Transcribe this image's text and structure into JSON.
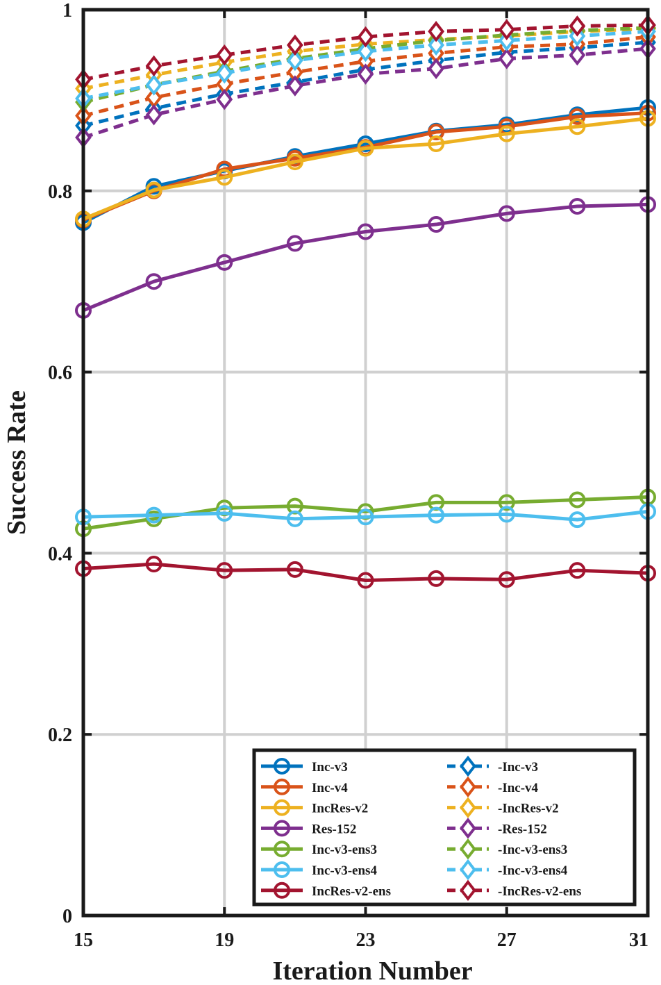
{
  "chart_data": {
    "type": "line",
    "title": "",
    "xlabel": "Iteration Number",
    "ylabel": "Success Rate",
    "xlim": [
      15,
      31
    ],
    "ylim": [
      0,
      1
    ],
    "xticks": [
      15,
      19,
      23,
      27,
      31
    ],
    "yticks": [
      0,
      0.2,
      0.4,
      0.6,
      0.8,
      1
    ],
    "xtick_labels": [
      "15",
      "19",
      "23",
      "27",
      "31"
    ],
    "ytick_labels": [
      "0",
      "0.2",
      "0.4",
      "0.6",
      "0.8",
      "1"
    ],
    "grid": true,
    "legend_position": "bottom-right",
    "x": [
      15,
      17,
      19,
      21,
      23,
      25,
      27,
      29,
      31
    ],
    "series": [
      {
        "name": "Inc-v3",
        "color": "#0072BD",
        "marker": "circle",
        "style": "solid",
        "values": [
          0.765,
          0.805,
          0.822,
          0.838,
          0.852,
          0.866,
          0.873,
          0.884,
          0.892
        ]
      },
      {
        "name": "Inc-v4",
        "color": "#D95319",
        "marker": "circle",
        "style": "solid",
        "values": [
          0.768,
          0.8,
          0.824,
          0.836,
          0.848,
          0.865,
          0.871,
          0.882,
          0.886
        ]
      },
      {
        "name": "IncRes-v2",
        "color": "#EDB120",
        "marker": "circle",
        "style": "solid",
        "values": [
          0.769,
          0.801,
          0.815,
          0.832,
          0.847,
          0.852,
          0.863,
          0.871,
          0.88
        ]
      },
      {
        "name": "Res-152",
        "color": "#7E2F8E",
        "marker": "circle",
        "style": "solid",
        "values": [
          0.668,
          0.7,
          0.721,
          0.742,
          0.755,
          0.763,
          0.775,
          0.783,
          0.785
        ]
      },
      {
        "name": "Inc-v3-ens3",
        "color": "#77AC30",
        "marker": "circle",
        "style": "solid",
        "values": [
          0.427,
          0.438,
          0.45,
          0.452,
          0.446,
          0.456,
          0.456,
          0.459,
          0.462
        ]
      },
      {
        "name": "Inc-v3-ens4",
        "color": "#4DBEEE",
        "marker": "circle",
        "style": "solid",
        "values": [
          0.44,
          0.442,
          0.444,
          0.438,
          0.44,
          0.442,
          0.443,
          0.437,
          0.446
        ]
      },
      {
        "name": "IncRes-v2-ens",
        "color": "#A2142F",
        "marker": "circle",
        "style": "solid",
        "values": [
          0.383,
          0.388,
          0.381,
          0.382,
          0.37,
          0.372,
          0.371,
          0.381,
          0.378
        ]
      },
      {
        "name": "-Inc-v3",
        "color": "#0072BD",
        "marker": "diamond",
        "style": "dashed",
        "values": [
          0.872,
          0.891,
          0.907,
          0.92,
          0.934,
          0.944,
          0.953,
          0.958,
          0.964
        ]
      },
      {
        "name": "-Inc-v4",
        "color": "#D95319",
        "marker": "diamond",
        "style": "dashed",
        "values": [
          0.883,
          0.903,
          0.918,
          0.931,
          0.943,
          0.952,
          0.959,
          0.962,
          0.97
        ]
      },
      {
        "name": "-IncRes-v2",
        "color": "#EDB120",
        "marker": "diamond",
        "style": "dashed",
        "values": [
          0.913,
          0.928,
          0.942,
          0.954,
          0.962,
          0.967,
          0.971,
          0.976,
          0.979
        ]
      },
      {
        "name": "-Res-152",
        "color": "#7E2F8E",
        "marker": "diamond",
        "style": "dashed",
        "values": [
          0.859,
          0.884,
          0.901,
          0.916,
          0.929,
          0.935,
          0.946,
          0.95,
          0.957
        ]
      },
      {
        "name": "-Inc-v3-ens3",
        "color": "#77AC30",
        "marker": "diamond",
        "style": "dashed",
        "values": [
          0.898,
          0.917,
          0.932,
          0.946,
          0.957,
          0.966,
          0.972,
          0.977,
          0.98
        ]
      },
      {
        "name": "-Inc-v3-ens4",
        "color": "#4DBEEE",
        "marker": "diamond",
        "style": "dashed",
        "values": [
          0.902,
          0.917,
          0.93,
          0.944,
          0.954,
          0.961,
          0.966,
          0.971,
          0.976
        ]
      },
      {
        "name": "-IncRes-v2-ens",
        "color": "#A2142F",
        "marker": "diamond",
        "style": "dashed",
        "values": [
          0.923,
          0.938,
          0.95,
          0.961,
          0.97,
          0.976,
          0.978,
          0.982,
          0.983
        ]
      }
    ]
  }
}
